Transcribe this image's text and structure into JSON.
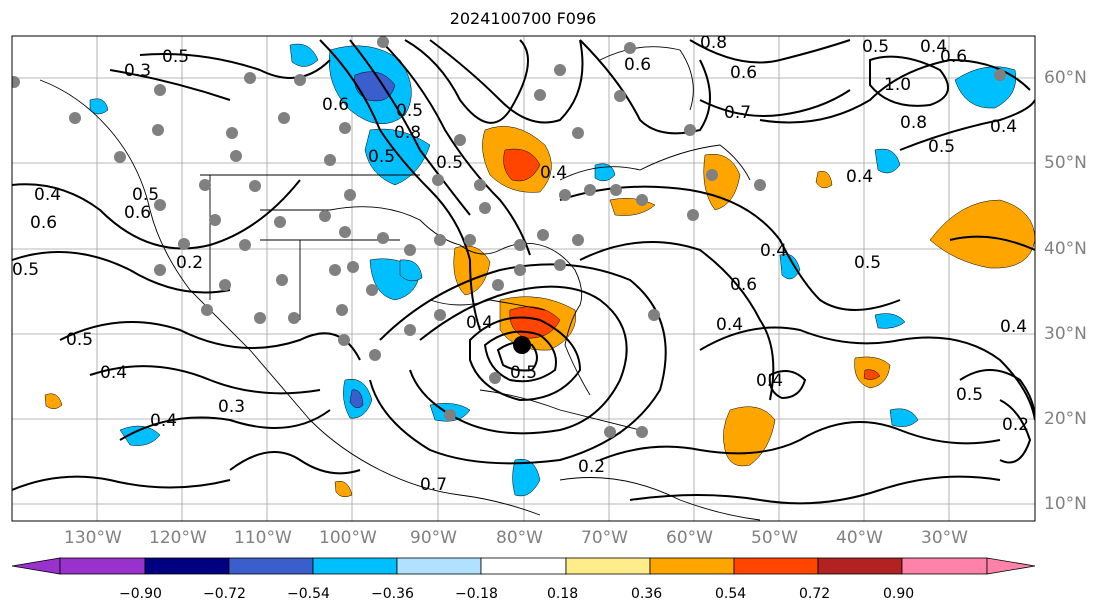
{
  "title": "2024100700 F096",
  "longitude_labels": [
    "130°W",
    "120°W",
    "110°W",
    "100°W",
    "90°W",
    "80°W",
    "70°W",
    "60°W",
    "50°W",
    "40°W",
    "30°W"
  ],
  "latitude_labels": [
    "60°N",
    "50°N",
    "40°N",
    "30°N",
    "20°N",
    "10°N"
  ],
  "colorbar": {
    "ticks": [
      "−0.90",
      "−0.72",
      "−0.54",
      "−0.36",
      "−0.18",
      "0.18",
      "0.36",
      "0.54",
      "0.72",
      "0.90"
    ],
    "colors": [
      "#9932cc",
      "#000080",
      "#3a5fcd",
      "#00bfff",
      "#b0e2ff",
      "#ffffff",
      "#ffec8b",
      "#ffa500",
      "#ff4500",
      "#b22222",
      "#ff82ab"
    ]
  },
  "contour_labels": [
    "0.5",
    "0.3",
    "0.4",
    "0.6",
    "0.5",
    "0.2",
    "0.5",
    "0.4",
    "0.3",
    "0.4",
    "0.6",
    "0.8",
    "0.5",
    "0.7",
    "0.6",
    "0.8",
    "0.5",
    "0.4",
    "1.0",
    "0.8",
    "0.5",
    "0.4",
    "0.5",
    "0.6",
    "0.4",
    "0.4",
    "0.6",
    "0.4",
    "0.5",
    "0.2",
    "0.5",
    "0.4",
    "0.6",
    "0.5",
    "0.4",
    "0.5",
    "0.4",
    "0.7",
    "0.6",
    "0.5",
    "0.4",
    "0.2"
  ],
  "field_colors": {
    "positive": "#ffa500",
    "strong_positive": "#ff4500",
    "negative": "#00bfff",
    "strong_negative": "#3a5fcd",
    "station": "#808080"
  }
}
